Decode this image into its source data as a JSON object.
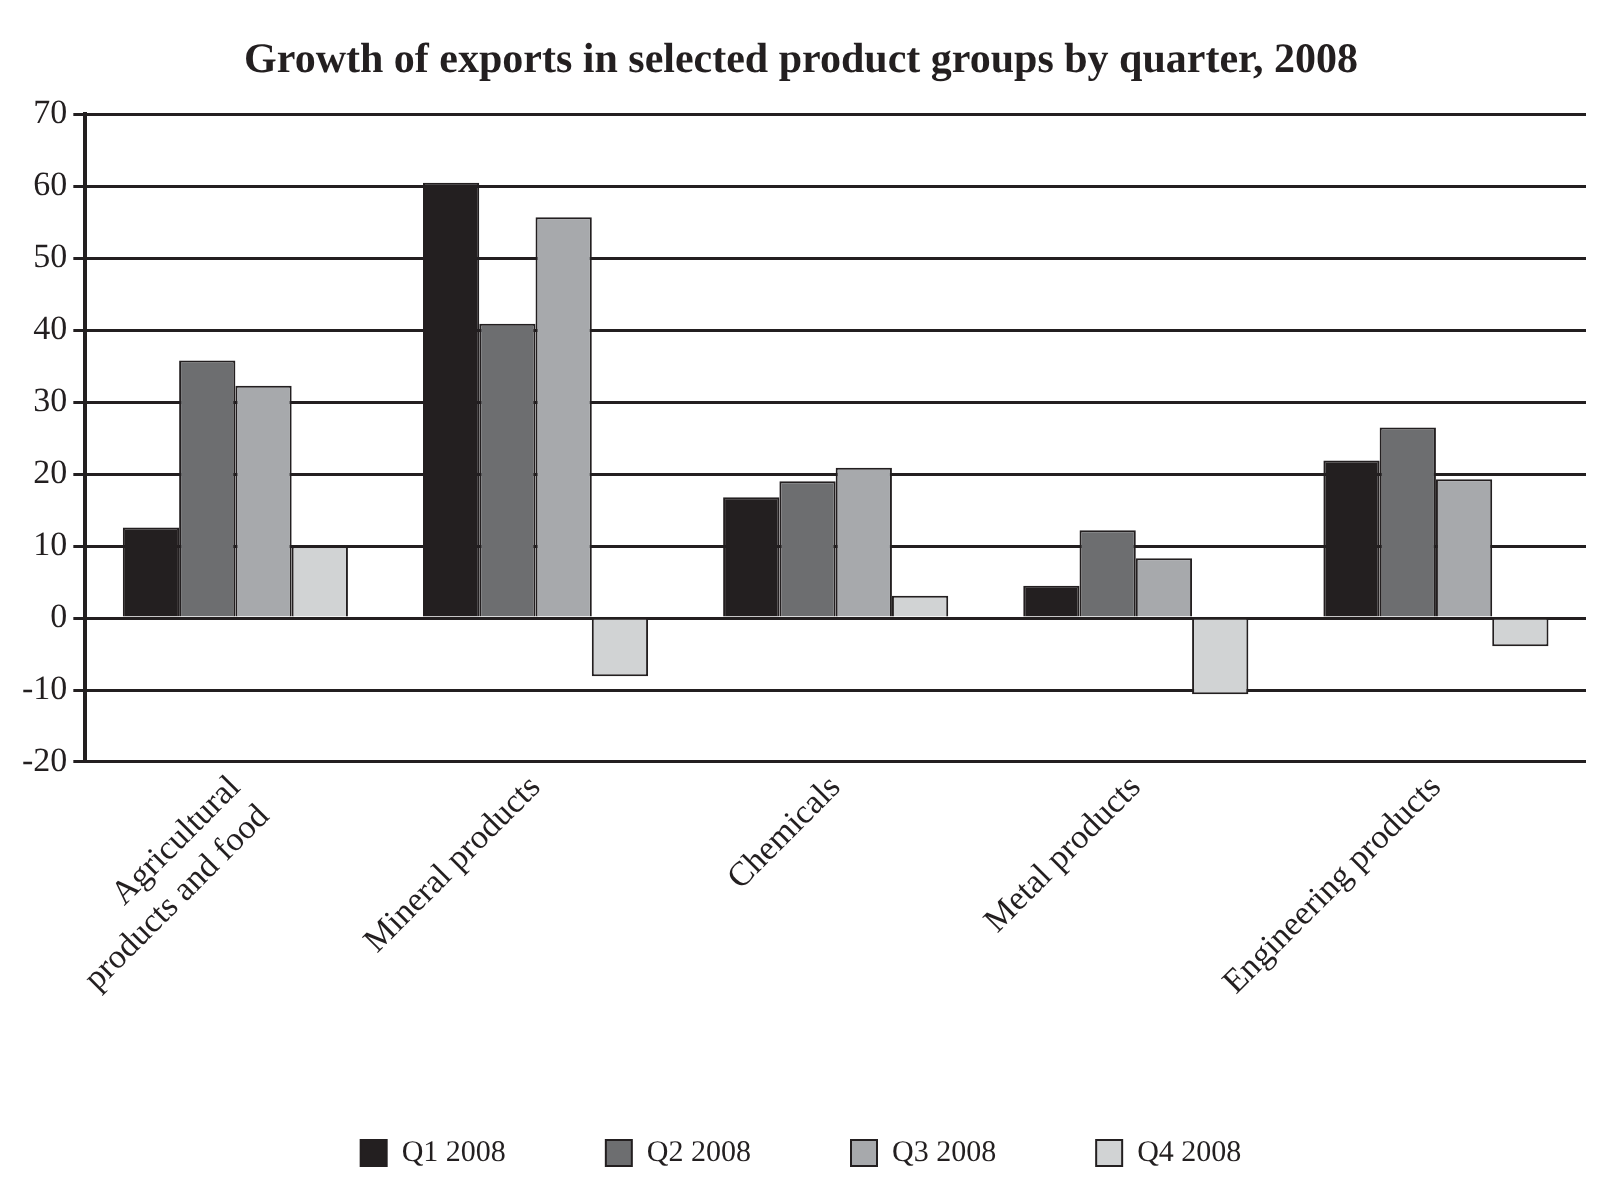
{
  "chart_data": {
    "type": "bar",
    "title": "Growth of exports in selected product groups by quarter, 2008",
    "categories": [
      "Agricultural products and food",
      "Mineral products",
      "Chemicals",
      "Metal products",
      "Engineering products"
    ],
    "series": [
      {
        "name": "Q1 2008",
        "color": "#231f20",
        "values": [
          12.6,
          60.5,
          16.8,
          4.5,
          21.9
        ]
      },
      {
        "name": "Q2 2008",
        "color": "#6d6e70",
        "values": [
          35.8,
          40.9,
          19,
          12.2,
          26.5
        ]
      },
      {
        "name": "Q3 2008",
        "color": "#a7a9ac",
        "values": [
          32.3,
          55.7,
          20.9,
          8.3,
          19.3
        ]
      },
      {
        "name": "Q4 2008",
        "color": "#d1d3d4",
        "values": [
          10,
          -8.1,
          3.1,
          -10.6,
          -3.9
        ]
      }
    ],
    "ylim": [
      -20,
      70
    ],
    "yticks": [
      -20,
      -10,
      0,
      10,
      20,
      30,
      40,
      50,
      60,
      70
    ],
    "grid": "y",
    "legend": "bottom"
  }
}
